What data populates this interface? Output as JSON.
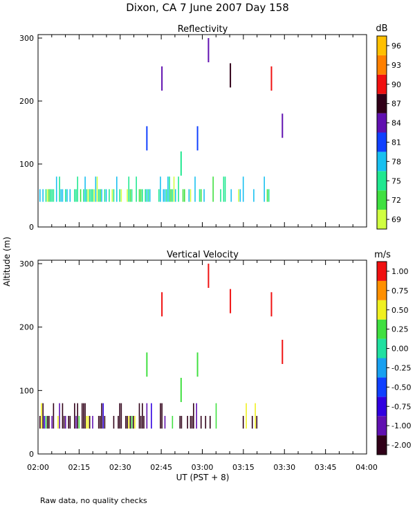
{
  "page": {
    "title": "Dixon, CA  7 June 2007  Day 158",
    "ylabel": "Altitude (m)",
    "xlabel": "UT  (PST + 8)",
    "footnote": "Raw data, no quality checks"
  },
  "chart_data": [
    {
      "type": "heatmap",
      "title": "Reflectivity",
      "colorbar_unit": "dB",
      "colorbar_ticks": [
        "69",
        "72",
        "75",
        "78",
        "81",
        "84",
        "87",
        "90",
        "93",
        "96"
      ],
      "colorbar_colors": [
        "#d0ff40",
        "#40e040",
        "#20e890",
        "#18c0f0",
        "#1040ff",
        "#6010b0",
        "#300018",
        "#f01010",
        "#ff8000",
        "#ffc000"
      ],
      "x_ticks": [
        "02:00",
        "02:15",
        "02:30",
        "02:45",
        "03:00",
        "03:15",
        "03:30",
        "03:45",
        "04:00"
      ],
      "x_range_minutes": [
        0,
        120
      ],
      "y_ticks": [
        "0",
        "100",
        "200",
        "300"
      ],
      "ylim": [
        0,
        300
      ]
    },
    {
      "type": "heatmap",
      "title": "Vertical Velocity",
      "colorbar_unit": "m/s",
      "colorbar_ticks": [
        "-2.00",
        "-1.00",
        "-0.75",
        "-0.50",
        "-0.25",
        "0.00",
        "0.25",
        "0.50",
        "0.75",
        "1.00"
      ],
      "colorbar_colors": [
        "#300018",
        "#6010b0",
        "#3000e0",
        "#1040ff",
        "#18a0f0",
        "#20e0a0",
        "#40e040",
        "#f0f020",
        "#ff9000",
        "#f01010"
      ],
      "x_ticks": [
        "02:00",
        "02:15",
        "02:30",
        "02:45",
        "03:00",
        "03:15",
        "03:30",
        "03:45",
        "04:00"
      ],
      "x_range_minutes": [
        0,
        120
      ],
      "y_ticks": [
        "0",
        "100",
        "200",
        "300"
      ],
      "ylim": [
        0,
        300
      ]
    }
  ]
}
